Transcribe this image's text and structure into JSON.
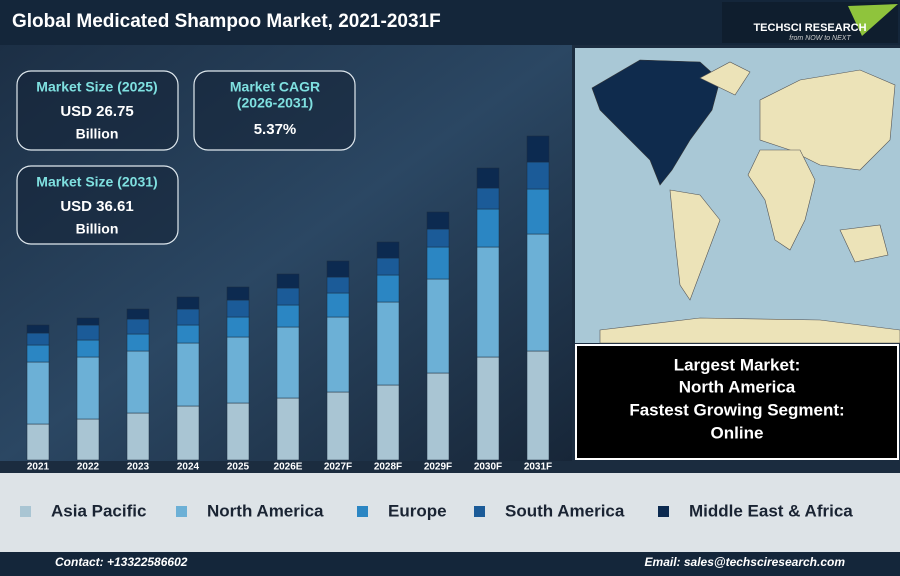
{
  "header": {
    "title": "Global Medicated Shampoo Market, 2021-2031F",
    "logo": "TECHSCI RESEARCH",
    "tagline": "from NOW to NEXT"
  },
  "kpis": [
    {
      "label": "Market Size (2025)",
      "value": "USD 26.75",
      "unit": "Billion"
    },
    {
      "label": "Market CAGR",
      "label2": "(2026-2031)",
      "value": "5.37%"
    },
    {
      "label": "Market Size (2031)",
      "value": "USD 36.61",
      "unit": "Billion"
    }
  ],
  "chart_data": {
    "type": "stacked-bar",
    "categories": [
      "2021",
      "2022",
      "2023",
      "2024",
      "2025",
      "2026E",
      "2027F",
      "2028F",
      "2029F",
      "2030F",
      "2031F"
    ],
    "ylim": [
      0,
      340
    ],
    "series": [
      {
        "name": "Asia Pacific",
        "color": "#a9c5d3",
        "values": [
          36,
          41,
          47,
          54,
          57,
          62,
          68,
          75,
          87,
          103,
          109
        ]
      },
      {
        "name": "North America",
        "color": "#6cb0d6",
        "values": [
          62,
          62,
          62,
          63,
          66,
          71,
          75,
          83,
          94,
          110,
          117
        ]
      },
      {
        "name": "Europe",
        "color": "#2b86c3",
        "values": [
          17,
          17,
          17,
          18,
          20,
          22,
          24,
          27,
          32,
          38,
          45
        ]
      },
      {
        "name": "South America",
        "color": "#1b5b98",
        "values": [
          12,
          15,
          15,
          16,
          17,
          17,
          16,
          17,
          18,
          21,
          27
        ]
      },
      {
        "name": "Middle East & Africa",
        "color": "#0c2a50",
        "values": [
          8,
          7,
          10,
          12,
          13,
          14,
          16,
          16,
          17,
          20,
          26
        ]
      }
    ]
  },
  "info": [
    "Largest Market:",
    "North America",
    "Fastest Growing Segment:",
    "Online"
  ],
  "footer": {
    "contact": "Contact: +13322586602",
    "email": "Email: sales@techsciresearch.com"
  }
}
